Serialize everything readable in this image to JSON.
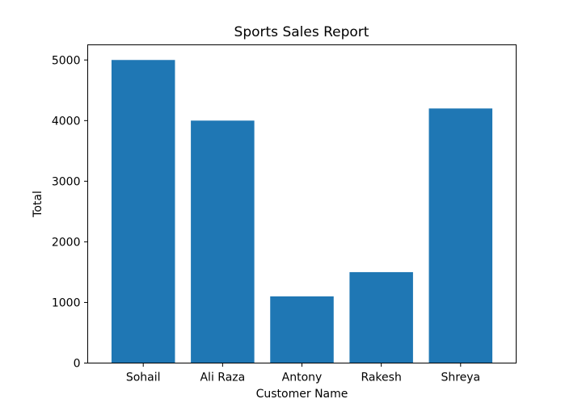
{
  "chart_data": {
    "type": "bar",
    "title": "Sports Sales Report",
    "xlabel": "Customer Name",
    "ylabel": "Total",
    "categories": [
      "Sohail",
      "Ali Raza",
      "Antony",
      "Rakesh",
      "Shreya"
    ],
    "values": [
      5000,
      4000,
      1100,
      1500,
      4200
    ],
    "ylim": [
      0,
      5250
    ],
    "yticks": [
      0,
      1000,
      2000,
      3000,
      4000,
      5000
    ],
    "grid": false,
    "bar_color": "#1f77b4"
  }
}
